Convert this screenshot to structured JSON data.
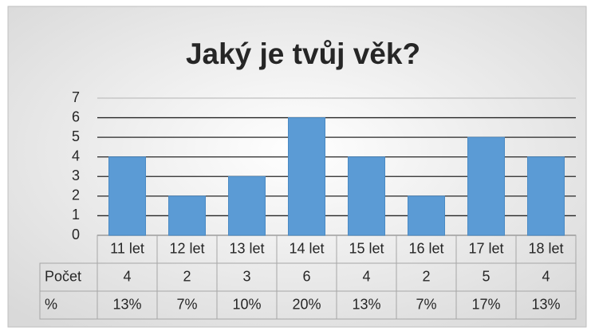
{
  "chart_data": {
    "type": "bar",
    "title": "Jaký je tvůj věk?",
    "categories": [
      "11 let",
      "12 let",
      "13 let",
      "14 let",
      "15 let",
      "16 let",
      "17 let",
      "18 let"
    ],
    "series": [
      {
        "name": "Počet",
        "color": "#5b9bd5",
        "values": [
          4,
          2,
          3,
          6,
          4,
          2,
          5,
          4
        ]
      }
    ],
    "ylim": [
      0,
      7
    ],
    "yticks": [
      0,
      1,
      2,
      3,
      4,
      5,
      6,
      7
    ],
    "grid": true,
    "data_table": {
      "rows": [
        {
          "name": "%",
          "values": [
            13,
            7,
            10,
            20,
            13,
            7,
            17,
            13
          ],
          "value_labels": [
            "13%",
            "7%",
            "10%",
            "20%",
            "13%",
            "7%",
            "17%",
            "13%"
          ]
        }
      ]
    }
  }
}
